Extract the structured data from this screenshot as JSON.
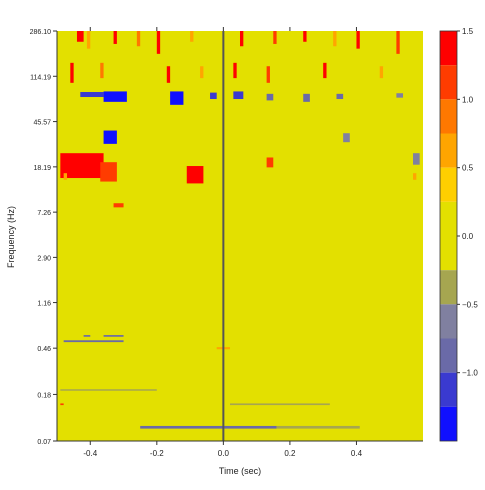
{
  "chart_data": {
    "type": "heatmap",
    "title": "",
    "xlabel": "Time (sec)",
    "ylabel": "Frequency (Hz)",
    "xlim": [
      -0.5,
      0.6
    ],
    "ylim": [
      0.07,
      286.1
    ],
    "y_scale": "log",
    "x_ticks": [
      -0.4,
      -0.2,
      0.0,
      0.2,
      0.4
    ],
    "x_tick_labels": [
      "-0.4",
      "-0.2",
      "0.0",
      "0.2",
      "0.4"
    ],
    "y_ticks": [
      286.1,
      114.19,
      45.57,
      18.19,
      7.26,
      2.9,
      1.16,
      0.46,
      0.18,
      0.07
    ],
    "y_tick_labels": [
      "286.10",
      "114.19",
      "45.57",
      "18.19",
      "7.26",
      "2.90",
      "1.16",
      "0.46",
      "0.18",
      "0.07"
    ],
    "background_color": "#e3e000",
    "event_marker_time": 0.0,
    "colorbar": {
      "range": [
        -1.5,
        1.5
      ],
      "ticks": [
        1.5,
        1.0,
        0.5,
        0.0,
        -0.5,
        -1.0
      ],
      "tick_labels": [
        "1.5",
        "1.0",
        "0.5",
        "0.0",
        "−0.5",
        "−1.0"
      ],
      "bins": [
        {
          "lo": 1.25,
          "hi": 1.5,
          "color": "#ff0000"
        },
        {
          "lo": 1.0,
          "hi": 1.25,
          "color": "#ff3c00"
        },
        {
          "lo": 0.75,
          "hi": 1.0,
          "color": "#ff7800"
        },
        {
          "lo": 0.5,
          "hi": 0.75,
          "color": "#ffa500"
        },
        {
          "lo": 0.25,
          "hi": 0.5,
          "color": "#ffcf00"
        },
        {
          "lo": 0.0,
          "hi": 0.25,
          "color": "#e3e000"
        },
        {
          "lo": -0.25,
          "hi": 0.0,
          "color": "#e3e000"
        },
        {
          "lo": -0.5,
          "hi": -0.25,
          "color": "#a6a650"
        },
        {
          "lo": -0.75,
          "hi": -0.5,
          "color": "#8080a0"
        },
        {
          "lo": -1.0,
          "hi": -0.75,
          "color": "#6a6aa8"
        },
        {
          "lo": -1.25,
          "hi": -1.0,
          "color": "#3a3ad0"
        },
        {
          "lo": -1.5,
          "hi": -1.25,
          "color": "#1010ff"
        }
      ]
    },
    "regions": [
      {
        "t0": -0.49,
        "t1": -0.36,
        "f0": 14.5,
        "f1": 24,
        "value": 1.4
      },
      {
        "t0": -0.37,
        "t1": -0.32,
        "f0": 13.5,
        "f1": 20,
        "value": 1.2
      },
      {
        "t0": -0.11,
        "t1": -0.06,
        "f0": 13,
        "f1": 18.5,
        "value": 1.3
      },
      {
        "t0": 0.13,
        "t1": 0.15,
        "f0": 18,
        "f1": 22,
        "value": 1.2
      },
      {
        "t0": -0.33,
        "t1": -0.3,
        "f0": 8.0,
        "f1": 8.7,
        "value": 1.1
      },
      {
        "t0": -0.36,
        "t1": -0.29,
        "f0": 68,
        "f1": 84,
        "value": -1.35
      },
      {
        "t0": -0.43,
        "t1": -0.36,
        "f0": 75,
        "f1": 83,
        "value": -1.1
      },
      {
        "t0": -0.16,
        "t1": -0.12,
        "f0": 64,
        "f1": 84,
        "value": -1.35
      },
      {
        "t0": -0.04,
        "t1": -0.02,
        "f0": 72,
        "f1": 82,
        "value": -1.2
      },
      {
        "t0": 0.03,
        "t1": 0.06,
        "f0": 72,
        "f1": 84,
        "value": -1.1
      },
      {
        "t0": 0.13,
        "t1": 0.15,
        "f0": 70,
        "f1": 80,
        "value": -0.9
      },
      {
        "t0": 0.24,
        "t1": 0.26,
        "f0": 68,
        "f1": 80,
        "value": -0.9
      },
      {
        "t0": 0.34,
        "t1": 0.36,
        "f0": 72,
        "f1": 80,
        "value": -0.8
      },
      {
        "t0": 0.52,
        "t1": 0.54,
        "f0": 74,
        "f1": 81,
        "value": -0.6
      },
      {
        "t0": -0.36,
        "t1": -0.32,
        "f0": 29,
        "f1": 38,
        "value": -1.35
      },
      {
        "t0": 0.36,
        "t1": 0.38,
        "f0": 30,
        "f1": 36,
        "value": -0.7
      },
      {
        "t0": 0.57,
        "t1": 0.59,
        "f0": 19,
        "f1": 24,
        "value": -0.6
      },
      {
        "t0": -0.42,
        "t1": -0.4,
        "f0": 0.58,
        "f1": 0.6,
        "value": -0.9
      },
      {
        "t0": -0.36,
        "t1": -0.3,
        "f0": 0.58,
        "f1": 0.6,
        "value": -0.9
      },
      {
        "t0": -0.48,
        "t1": -0.3,
        "f0": 0.52,
        "f1": 0.54,
        "value": -0.9
      },
      {
        "t0": -0.02,
        "t1": 0.02,
        "f0": 0.45,
        "f1": 0.47,
        "value": 0.6
      },
      {
        "t0": -0.49,
        "t1": -0.2,
        "f0": 0.195,
        "f1": 0.2,
        "value": -0.4
      },
      {
        "t0": 0.02,
        "t1": 0.32,
        "f0": 0.145,
        "f1": 0.15,
        "value": -0.4
      },
      {
        "t0": -0.25,
        "t1": 0.16,
        "f0": 0.09,
        "f1": 0.095,
        "value": -0.9
      },
      {
        "t0": 0.16,
        "t1": 0.41,
        "f0": 0.09,
        "f1": 0.095,
        "value": -0.4
      },
      {
        "t0": -0.44,
        "t1": -0.42,
        "f0": 230,
        "f1": 286.1,
        "value": 1.3
      },
      {
        "t0": -0.41,
        "t1": -0.4,
        "f0": 200,
        "f1": 286.1,
        "value": 0.7
      },
      {
        "t0": -0.33,
        "t1": -0.32,
        "f0": 220,
        "f1": 286.1,
        "value": 1.3
      },
      {
        "t0": -0.26,
        "t1": -0.25,
        "f0": 210,
        "f1": 286.1,
        "value": 0.9
      },
      {
        "t0": -0.2,
        "t1": -0.19,
        "f0": 180,
        "f1": 286.1,
        "value": 1.3
      },
      {
        "t0": -0.1,
        "t1": -0.09,
        "f0": 230,
        "f1": 286.1,
        "value": 0.7
      },
      {
        "t0": 0.05,
        "t1": 0.06,
        "f0": 210,
        "f1": 286.1,
        "value": 1.3
      },
      {
        "t0": 0.15,
        "t1": 0.16,
        "f0": 220,
        "f1": 286.1,
        "value": 1.0
      },
      {
        "t0": 0.24,
        "t1": 0.25,
        "f0": 230,
        "f1": 286.1,
        "value": 1.3
      },
      {
        "t0": 0.33,
        "t1": 0.34,
        "f0": 210,
        "f1": 286.1,
        "value": 0.7
      },
      {
        "t0": 0.4,
        "t1": 0.41,
        "f0": 200,
        "f1": 286.1,
        "value": 1.3
      },
      {
        "t0": 0.52,
        "t1": 0.53,
        "f0": 180,
        "f1": 286.1,
        "value": 1.0
      },
      {
        "t0": -0.46,
        "t1": -0.45,
        "f0": 100,
        "f1": 150,
        "value": 1.3
      },
      {
        "t0": -0.37,
        "t1": -0.36,
        "f0": 110,
        "f1": 150,
        "value": 0.9
      },
      {
        "t0": -0.17,
        "t1": -0.16,
        "f0": 100,
        "f1": 140,
        "value": 1.3
      },
      {
        "t0": -0.07,
        "t1": -0.06,
        "f0": 110,
        "f1": 140,
        "value": 0.7
      },
      {
        "t0": 0.03,
        "t1": 0.04,
        "f0": 110,
        "f1": 150,
        "value": 1.3
      },
      {
        "t0": 0.13,
        "t1": 0.14,
        "f0": 100,
        "f1": 140,
        "value": 1.0
      },
      {
        "t0": 0.3,
        "t1": 0.31,
        "f0": 110,
        "f1": 150,
        "value": 1.3
      },
      {
        "t0": 0.47,
        "t1": 0.48,
        "f0": 110,
        "f1": 140,
        "value": 0.7
      },
      {
        "t0": -0.48,
        "t1": -0.47,
        "f0": 14,
        "f1": 16,
        "value": 0.6
      },
      {
        "t0": 0.57,
        "t1": 0.58,
        "f0": 14,
        "f1": 16,
        "value": 0.6
      },
      {
        "t0": -0.49,
        "t1": -0.48,
        "f0": 0.145,
        "f1": 0.15,
        "value": 1.2
      }
    ]
  }
}
